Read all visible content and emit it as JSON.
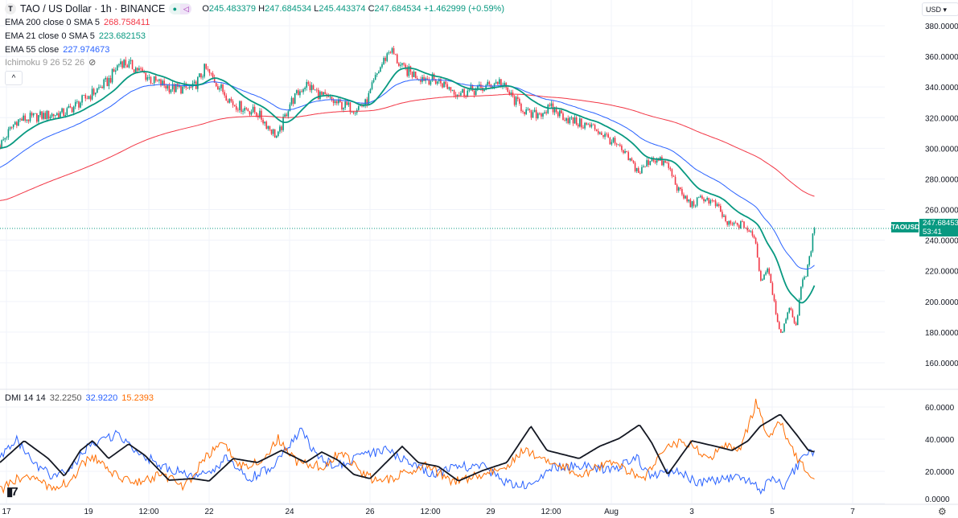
{
  "header": {
    "symbol_icon": "T",
    "title": "TAO / US Dollar · 1h · BINANCE",
    "ohlc": {
      "o_label": "O",
      "o": "245.483379",
      "h_label": "H",
      "h": "247.684534",
      "l_label": "L",
      "l": "245.443374",
      "c_label": "C",
      "c": "247.684534",
      "change": "+1.462999 (+0.59%)"
    }
  },
  "indicators": {
    "ema200": {
      "label": "EMA 200 close 0 SMA 5",
      "value": "268.758411",
      "color": "#f23645"
    },
    "ema21": {
      "label": "EMA 21 close 0 SMA 5",
      "value": "223.682153",
      "color": "#089981"
    },
    "ema55": {
      "label": "EMA 55 close",
      "value": "227.974673",
      "color": "#2962ff"
    },
    "ichimoku": {
      "label": "Ichimoku 9 26 52 26",
      "hidden_icon": "eye-slash-icon"
    },
    "dmi": {
      "label": "DMI 14 14",
      "adx": "32.2250",
      "plus_di": "32.9220",
      "minus_di": "15.2393",
      "adx_color": "#131722",
      "plus_color": "#2962ff",
      "minus_color": "#ff6d00"
    }
  },
  "controls": {
    "collapse": "^",
    "currency": "USD ▾",
    "settings_icon": "gear-icon"
  },
  "price_tag": {
    "symbol": "TAOUSD",
    "price": "247.684534",
    "countdown": "53:41"
  },
  "logo_text": "TV",
  "chart_data": {
    "type": "candlestick",
    "title": "TAO / US Dollar · 1h · BINANCE",
    "interval_hours": 1,
    "price_ylim": [
      160,
      380
    ],
    "price_ticks": [
      380,
      360,
      340,
      320,
      300,
      280,
      260,
      240,
      220,
      200,
      180,
      160
    ],
    "dmi_ylim": [
      0,
      60
    ],
    "dmi_ticks": [
      60,
      40,
      20,
      0
    ],
    "x_ticks": [
      {
        "label": "17",
        "day": 0.16
      },
      {
        "label": "19",
        "day": 2.2
      },
      {
        "label": "12:00",
        "day": 3.7
      },
      {
        "label": "22",
        "day": 5.2
      },
      {
        "label": "24",
        "day": 7.2
      },
      {
        "label": "26",
        "day": 9.2
      },
      {
        "label": "12:00",
        "day": 10.7
      },
      {
        "label": "29",
        "day": 12.2
      },
      {
        "label": "12:00",
        "day": 13.7
      },
      {
        "label": "Aug",
        "day": 15.2
      },
      {
        "label": "3",
        "day": 17.2
      },
      {
        "label": "5",
        "day": 19.2
      },
      {
        "label": "7",
        "day": 21.2
      }
    ],
    "last_price": 247.684534,
    "close_keypoints": [
      [
        0,
        302
      ],
      [
        0.4,
        318
      ],
      [
        1,
        321
      ],
      [
        1.6,
        323
      ],
      [
        2.2,
        334
      ],
      [
        2.7,
        344
      ],
      [
        3,
        357
      ],
      [
        3.4,
        352
      ],
      [
        3.8,
        344
      ],
      [
        4.3,
        339
      ],
      [
        4.8,
        339
      ],
      [
        5.1,
        352
      ],
      [
        5.4,
        342
      ],
      [
        5.8,
        329
      ],
      [
        6.4,
        323
      ],
      [
        6.9,
        307
      ],
      [
        7.2,
        329
      ],
      [
        7.6,
        342
      ],
      [
        8,
        334
      ],
      [
        8.4,
        329
      ],
      [
        8.8,
        326
      ],
      [
        9.1,
        329
      ],
      [
        9.4,
        350
      ],
      [
        9.7,
        365
      ],
      [
        10,
        352
      ],
      [
        10.4,
        347
      ],
      [
        10.9,
        344
      ],
      [
        11.4,
        336
      ],
      [
        12,
        339
      ],
      [
        12.4,
        344
      ],
      [
        12.8,
        331
      ],
      [
        13.2,
        321
      ],
      [
        13.7,
        326
      ],
      [
        14.2,
        318
      ],
      [
        14.8,
        313
      ],
      [
        15.2,
        305
      ],
      [
        15.6,
        294
      ],
      [
        15.9,
        284
      ],
      [
        16.2,
        294
      ],
      [
        16.6,
        289
      ],
      [
        16.9,
        271
      ],
      [
        17.2,
        263
      ],
      [
        17.5,
        268
      ],
      [
        17.8,
        263
      ],
      [
        18.1,
        250
      ],
      [
        18.5,
        250
      ],
      [
        18.8,
        239
      ],
      [
        18.9,
        213
      ],
      [
        19.1,
        223
      ],
      [
        19.3,
        192
      ],
      [
        19.44,
        176
      ],
      [
        19.6,
        197
      ],
      [
        19.8,
        184
      ],
      [
        19.9,
        208
      ],
      [
        20.1,
        223
      ],
      [
        20.24,
        247.68
      ]
    ],
    "ema_initial": {
      "ema200": 265.5,
      "ema55": 287,
      "ema21": 300
    },
    "dmi_series": {
      "adx": [
        [
          0,
          25.5
        ],
        [
          0.6,
          39
        ],
        [
          1.2,
          28
        ],
        [
          1.6,
          17
        ],
        [
          2,
          33
        ],
        [
          2.3,
          39
        ],
        [
          2.7,
          28
        ],
        [
          3.2,
          37
        ],
        [
          3.6,
          30
        ],
        [
          4.2,
          14.5
        ],
        [
          4.8,
          15.5
        ],
        [
          5.2,
          14
        ],
        [
          5.8,
          28
        ],
        [
          6.4,
          25.5
        ],
        [
          7,
          33
        ],
        [
          7.6,
          25.5
        ],
        [
          8,
          32
        ],
        [
          8.4,
          27
        ],
        [
          8.8,
          18
        ],
        [
          9.2,
          15.5
        ],
        [
          9.6,
          25.5
        ],
        [
          10,
          35.5
        ],
        [
          10.4,
          25.5
        ],
        [
          10.9,
          23
        ],
        [
          11.4,
          14
        ],
        [
          12,
          20.5
        ],
        [
          12.6,
          25.5
        ],
        [
          13.2,
          48
        ],
        [
          13.6,
          33
        ],
        [
          14.4,
          28
        ],
        [
          14.9,
          35.5
        ],
        [
          15.4,
          40.5
        ],
        [
          15.9,
          49
        ],
        [
          16.2,
          38
        ],
        [
          16.6,
          18
        ],
        [
          17.2,
          39
        ],
        [
          17.8,
          35.5
        ],
        [
          18.2,
          33
        ],
        [
          18.6,
          39
        ],
        [
          18.9,
          48
        ],
        [
          19.4,
          55.5
        ],
        [
          19.8,
          43
        ],
        [
          20.1,
          33
        ],
        [
          20.24,
          32.2
        ]
      ],
      "plus_di": [
        [
          0,
          28
        ],
        [
          0.4,
          40.5
        ],
        [
          0.8,
          25.5
        ],
        [
          1.4,
          15.5
        ],
        [
          1.8,
          23
        ],
        [
          2.2,
          35.5
        ],
        [
          2.9,
          43
        ],
        [
          3.4,
          33
        ],
        [
          4,
          23
        ],
        [
          4.8,
          17
        ],
        [
          5.2,
          18
        ],
        [
          5.6,
          28
        ],
        [
          6.2,
          15.5
        ],
        [
          6.8,
          23
        ],
        [
          7.5,
          45.5
        ],
        [
          7.9,
          28
        ],
        [
          8.4,
          23
        ],
        [
          9,
          30.5
        ],
        [
          9.6,
          33
        ],
        [
          10.2,
          25.5
        ],
        [
          10.8,
          18
        ],
        [
          11.4,
          23
        ],
        [
          12,
          23
        ],
        [
          12.6,
          13
        ],
        [
          13.2,
          10.5
        ],
        [
          13.8,
          23
        ],
        [
          14.4,
          24
        ],
        [
          15.2,
          20.5
        ],
        [
          15.8,
          29
        ],
        [
          16.2,
          17
        ],
        [
          16.8,
          20.5
        ],
        [
          17.4,
          13
        ],
        [
          18,
          15.5
        ],
        [
          18.6,
          15.5
        ],
        [
          18.9,
          8
        ],
        [
          19.2,
          15.5
        ],
        [
          19.5,
          10.5
        ],
        [
          19.8,
          23
        ],
        [
          20.1,
          30.5
        ],
        [
          20.24,
          32.9
        ]
      ],
      "minus_di": [
        [
          0,
          8
        ],
        [
          0.6,
          18
        ],
        [
          1.2,
          10.5
        ],
        [
          1.8,
          13
        ],
        [
          2,
          25.5
        ],
        [
          2.4,
          28
        ],
        [
          2.8,
          18
        ],
        [
          3.5,
          13
        ],
        [
          4,
          18
        ],
        [
          4.6,
          10.5
        ],
        [
          5.1,
          28
        ],
        [
          5.5,
          38
        ],
        [
          6,
          23
        ],
        [
          6.6,
          28
        ],
        [
          6.9,
          40.5
        ],
        [
          7.4,
          25.5
        ],
        [
          8,
          23
        ],
        [
          8.5,
          33
        ],
        [
          8.9,
          20.5
        ],
        [
          9.4,
          13
        ],
        [
          10,
          18
        ],
        [
          10.6,
          25.5
        ],
        [
          11.2,
          13
        ],
        [
          12,
          18
        ],
        [
          12.6,
          23
        ],
        [
          13,
          33
        ],
        [
          13.6,
          28
        ],
        [
          14.4,
          18
        ],
        [
          15.2,
          25.5
        ],
        [
          16,
          15.5
        ],
        [
          16.6,
          35.5
        ],
        [
          17,
          39
        ],
        [
          17.6,
          28
        ],
        [
          18,
          35.5
        ],
        [
          18.4,
          33
        ],
        [
          18.8,
          63
        ],
        [
          19.1,
          40.5
        ],
        [
          19.4,
          50.5
        ],
        [
          19.8,
          28
        ],
        [
          20.24,
          15.2
        ]
      ]
    },
    "colors": {
      "up": "#089981",
      "down": "#f23645"
    }
  }
}
